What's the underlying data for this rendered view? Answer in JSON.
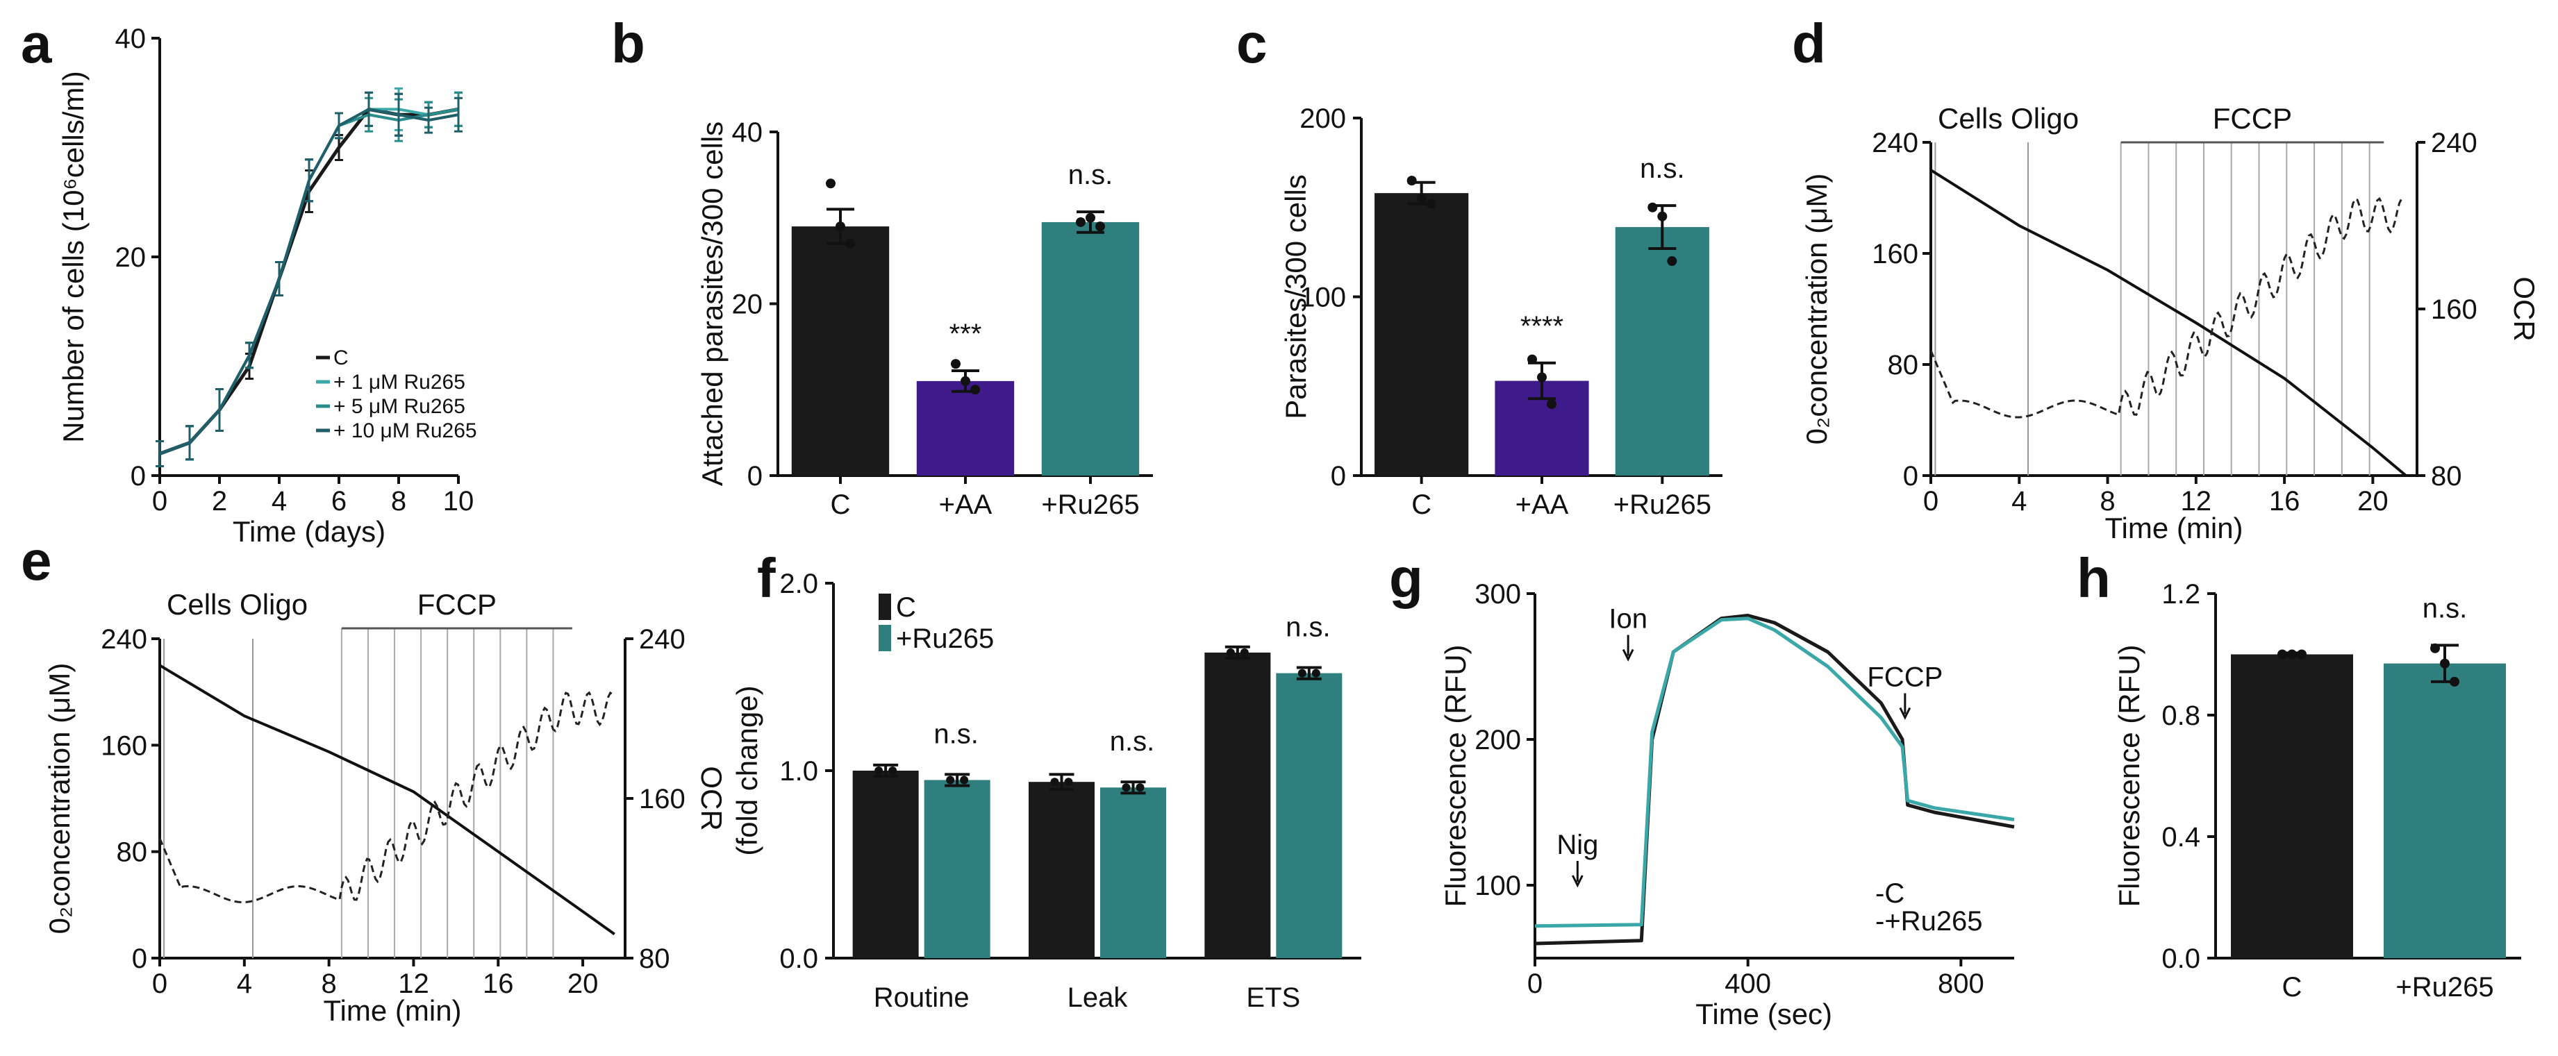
{
  "colors": {
    "black": "#1a1a1a",
    "purple": "#3f1a8a",
    "teal": "#2f7f7f",
    "teal_light": "#3aa8a8",
    "teal_mid": "#2b8c8c",
    "teal_dark": "#1f5f6a"
  },
  "chart_data": [
    {
      "panel": "a",
      "type": "line",
      "xlabel": "Time (days)",
      "ylabel": "Number of cells (10⁶cells/ml)",
      "xlim": [
        0,
        10
      ],
      "ylim": [
        0,
        40
      ],
      "xticks": [
        "0",
        "2",
        "4",
        "6",
        "8",
        "10"
      ],
      "yticks": [
        "0",
        "20",
        "40"
      ],
      "legend_placement": "bottom-right",
      "x": [
        0,
        1,
        2,
        3,
        4,
        5,
        6,
        7,
        8,
        9,
        10
      ],
      "series": [
        {
          "name": "C",
          "values": [
            2,
            3,
            6,
            10,
            18,
            26,
            30,
            33.5,
            33,
            33,
            33.5
          ],
          "color": "#1a1a1a"
        },
        {
          "name": "1 μM Ru265",
          "values": [
            2,
            3,
            6,
            11,
            18,
            27,
            32,
            33.5,
            33.5,
            33,
            33.5
          ],
          "color": "#3aa8a8"
        },
        {
          "name": "5 μM Ru265",
          "values": [
            2,
            3,
            6,
            11,
            18,
            27,
            32,
            33,
            32.5,
            33,
            33.5
          ],
          "color": "#2b8c8c"
        },
        {
          "name": "10 μM Ru265",
          "values": [
            2,
            3,
            6,
            11,
            18,
            27,
            32,
            33.5,
            33,
            32.5,
            33
          ],
          "color": "#1f5f6a"
        }
      ]
    },
    {
      "panel": "b",
      "type": "bar",
      "ylabel": "Attached parasites/300 cells",
      "ylim": [
        0,
        40
      ],
      "yticks": [
        "0",
        "20",
        "40"
      ],
      "categories": [
        "C",
        "+AA",
        "+Ru265"
      ],
      "values": [
        29,
        11,
        29.5
      ],
      "errors": [
        2,
        1.2,
        1.2
      ],
      "points": [
        [
          34,
          29,
          27
        ],
        [
          13,
          11,
          10
        ],
        [
          29.5,
          30,
          29
        ]
      ],
      "annotations": [
        "",
        "***",
        "n.s."
      ]
    },
    {
      "panel": "c",
      "type": "bar",
      "ylabel": "Parasites/300 cells",
      "ylim": [
        0,
        200
      ],
      "yticks": [
        "0",
        "100",
        "200"
      ],
      "categories": [
        "C",
        "+AA",
        "+Ru265"
      ],
      "values": [
        158,
        53,
        139
      ],
      "errors": [
        6,
        10,
        12
      ],
      "points": [
        [
          165,
          155,
          152
        ],
        [
          65,
          55,
          40
        ],
        [
          150,
          145,
          120
        ]
      ],
      "annotations": [
        "",
        "****",
        "n.s."
      ]
    },
    {
      "panel": "d",
      "type": "line",
      "xlabel": "Time (min)",
      "ylabel_left": "0₂concentration (μM)",
      "ylabel_right": "OCR",
      "xlim": [
        0,
        22
      ],
      "ylim_left": [
        0,
        240
      ],
      "ylim_right": [
        80,
        240
      ],
      "xticks": [
        "0",
        "4",
        "8",
        "12",
        "16",
        "20"
      ],
      "yticks_left": [
        "0",
        "80",
        "160",
        "240"
      ],
      "yticks_right": [
        "80",
        "160",
        "240"
      ],
      "event_labels": [
        "Cells Oligo",
        "FCCP"
      ],
      "o2_x": [
        0,
        4,
        8,
        12,
        16,
        20,
        21.5
      ],
      "o2_y": [
        220,
        180,
        148,
        110,
        70,
        20,
        0
      ]
    },
    {
      "panel": "e",
      "type": "line",
      "xlabel": "Time (min)",
      "ylabel_left": "0₂concentration (μM)",
      "ylabel_right": "OCR",
      "xlim": [
        0,
        22
      ],
      "ylim_left": [
        0,
        240
      ],
      "ylim_right": [
        80,
        240
      ],
      "xticks": [
        "0",
        "4",
        "8",
        "12",
        "16",
        "20"
      ],
      "yticks_left": [
        "0",
        "80",
        "160",
        "240"
      ],
      "yticks_right": [
        "80",
        "160",
        "240"
      ],
      "event_labels": [
        "Cells Oligo",
        "FCCP"
      ],
      "o2_x": [
        0,
        4,
        8,
        12,
        16,
        20,
        21.5
      ],
      "o2_y": [
        220,
        182,
        155,
        125,
        80,
        35,
        18
      ]
    },
    {
      "panel": "f",
      "type": "bar",
      "ylabel": "(fold change)",
      "ylim": [
        0,
        2.0
      ],
      "yticks": [
        "0.0",
        "1.0",
        "2.0"
      ],
      "categories": [
        "Routine",
        "Leak",
        "ETS"
      ],
      "series": [
        {
          "name": "C",
          "values": [
            1.0,
            0.94,
            1.63
          ],
          "errors": [
            0.03,
            0.04,
            0.03
          ]
        },
        {
          "name": "+Ru265",
          "values": [
            0.95,
            0.91,
            1.52
          ],
          "errors": [
            0.03,
            0.03,
            0.03
          ]
        }
      ],
      "annotations": [
        "n.s.",
        "n.s.",
        "n.s."
      ],
      "legend_placement": "top-left"
    },
    {
      "panel": "g",
      "type": "line",
      "xlabel": "Time (sec)",
      "ylabel": "Fluorescence (RFU)",
      "xlim": [
        0,
        900
      ],
      "ylim": [
        50,
        300
      ],
      "xticks": [
        "0",
        "400",
        "800"
      ],
      "yticks": [
        "100",
        "200",
        "300"
      ],
      "arrow_labels": [
        "Nig",
        "Ion",
        "FCCP"
      ],
      "series": [
        {
          "name": "C",
          "x": [
            0,
            200,
            220,
            260,
            350,
            400,
            450,
            550,
            650,
            690,
            700,
            750,
            900
          ],
          "values": [
            60,
            62,
            200,
            260,
            283,
            285,
            280,
            260,
            225,
            200,
            155,
            150,
            140
          ]
        },
        {
          "name": "+Ru265",
          "x": [
            0,
            200,
            220,
            260,
            350,
            400,
            450,
            550,
            650,
            690,
            700,
            750,
            900
          ],
          "values": [
            72,
            73,
            205,
            260,
            282,
            283,
            275,
            250,
            215,
            195,
            158,
            153,
            145
          ]
        }
      ],
      "legend_placement": "bottom-right"
    },
    {
      "panel": "h",
      "type": "bar",
      "ylabel": "Fluorescence (RFU)",
      "ylim": [
        0,
        1.2
      ],
      "yticks": [
        "0.0",
        "0.4",
        "0.8",
        "1.2"
      ],
      "categories": [
        "C",
        "+Ru265"
      ],
      "values": [
        1.0,
        0.97
      ],
      "errors": [
        0.005,
        0.06
      ],
      "points": [
        [
          1.0,
          1.0,
          1.0
        ],
        [
          1.02,
          0.97,
          0.91
        ]
      ],
      "annotations": [
        "",
        "n.s."
      ]
    }
  ]
}
